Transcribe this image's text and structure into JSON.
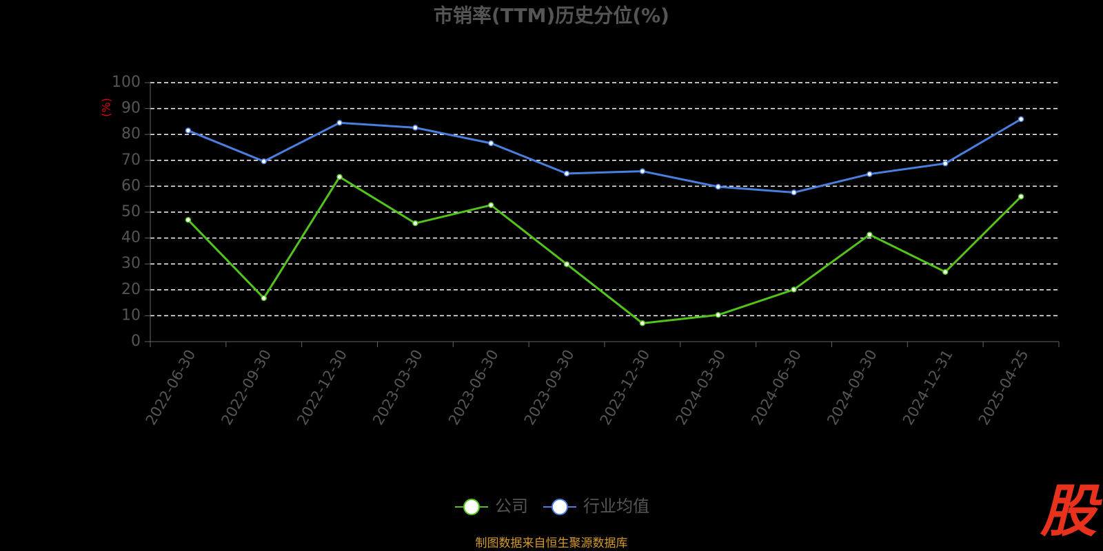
{
  "chart_data": {
    "type": "line",
    "title": "市销率(TTM)历史分位(%)",
    "y_label": "(%)",
    "categories": [
      "2022-06-30",
      "2022-09-30",
      "2022-12-30",
      "2023-03-30",
      "2023-06-30",
      "2023-09-30",
      "2023-12-30",
      "2024-03-30",
      "2024-06-30",
      "2024-09-30",
      "2024-12-31",
      "2025-04-25"
    ],
    "series": [
      {
        "name": "公司",
        "color": "#52c41a",
        "values": [
          47.0,
          16.8,
          63.6,
          45.7,
          52.7,
          29.9,
          7.1,
          10.3,
          20.1,
          41.3,
          26.9,
          56.0
        ]
      },
      {
        "name": "行业均值",
        "color": "#4a7fe0",
        "values": [
          81.5,
          69.6,
          84.5,
          82.6,
          76.6,
          64.9,
          65.8,
          59.8,
          57.6,
          64.7,
          68.8,
          85.9
        ]
      }
    ],
    "ylim": [
      0,
      100
    ],
    "yticks": [
      0,
      10,
      20,
      30,
      40,
      50,
      60,
      70,
      80,
      90,
      100
    ],
    "grid": true,
    "legend": "bottom",
    "source": "制图数据来自恒生聚源数据库",
    "logo": "股"
  }
}
